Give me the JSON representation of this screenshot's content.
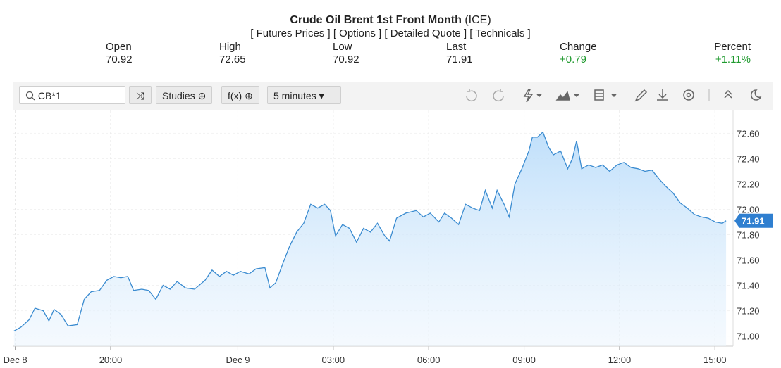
{
  "header": {
    "title": "Crude Oil Brent 1st Front Month",
    "exchange": "(ICE)",
    "links": [
      "[ Futures Prices ]",
      "[ Options ]",
      "[ Detailed Quote ]",
      "[ Technicals ]"
    ],
    "stats": [
      {
        "label": "Open",
        "value": "70.92"
      },
      {
        "label": "High",
        "value": "72.65"
      },
      {
        "label": "Low",
        "value": "70.92"
      },
      {
        "label": "Last",
        "value": "71.91"
      },
      {
        "label": "Change",
        "value": "+0.79"
      },
      {
        "label": "Percent",
        "value": "+1.11%"
      }
    ]
  },
  "toolbar": {
    "symbol": "CB*1",
    "studies": "Studies",
    "fx": "f(x)",
    "interval": "5 minutes"
  },
  "chart_data": {
    "type": "area",
    "color": "#3a8bd0",
    "grid": true,
    "last_price": 71.91,
    "last_label": "71.91",
    "x": [
      16.96,
      17.18,
      17.44,
      17.62,
      17.88,
      18.06,
      18.22,
      18.44,
      18.66,
      18.95,
      19.17,
      19.39,
      19.65,
      19.88,
      20.1,
      20.32,
      20.54,
      20.72,
      20.98,
      21.2,
      21.42,
      21.65,
      21.87,
      22.09,
      22.35,
      22.64,
      22.97,
      23.19,
      23.42,
      23.64,
      23.86,
      24.08,
      24.35,
      24.57,
      24.85,
      25.01,
      25.19,
      25.41,
      25.63,
      25.85,
      26.07,
      26.29,
      26.51,
      26.73,
      26.91,
      27.07,
      27.29,
      27.51,
      27.73,
      27.95,
      28.17,
      28.39,
      28.62,
      28.77,
      28.99,
      29.28,
      29.61,
      29.83,
      30.05,
      30.32,
      30.5,
      30.72,
      30.94,
      31.16,
      31.38,
      31.6,
      31.78,
      32.0,
      32.15,
      32.37,
      32.53,
      32.71,
      32.93,
      33.15,
      33.26,
      33.42,
      33.59,
      33.77,
      33.92,
      34.15,
      34.37,
      34.52,
      34.65,
      34.81,
      35.03,
      35.25,
      35.47,
      35.69,
      35.92,
      36.14,
      36.36,
      36.58,
      36.8,
      37.02,
      37.24,
      37.46,
      37.68,
      37.91,
      38.13,
      38.35,
      38.57,
      38.79,
      39.01,
      39.23,
      39.35
    ],
    "values": [
      71.04,
      71.07,
      71.13,
      71.22,
      71.2,
      71.12,
      71.21,
      71.17,
      71.08,
      71.09,
      71.29,
      71.35,
      71.36,
      71.44,
      71.47,
      71.46,
      71.47,
      71.36,
      71.37,
      71.36,
      71.29,
      71.4,
      71.37,
      71.43,
      71.38,
      71.37,
      71.44,
      71.52,
      71.47,
      71.51,
      71.48,
      71.51,
      71.49,
      71.53,
      71.54,
      71.38,
      71.42,
      71.57,
      71.71,
      71.82,
      71.89,
      72.04,
      72.01,
      72.04,
      71.99,
      71.79,
      71.88,
      71.85,
      71.74,
      71.85,
      71.82,
      71.89,
      71.79,
      71.75,
      71.93,
      71.97,
      71.99,
      71.94,
      71.97,
      71.9,
      71.97,
      71.93,
      71.88,
      72.04,
      72.01,
      71.99,
      72.15,
      72.01,
      72.15,
      72.04,
      71.94,
      72.2,
      72.32,
      72.46,
      72.57,
      72.57,
      72.61,
      72.49,
      72.43,
      72.46,
      72.32,
      72.4,
      72.54,
      72.32,
      72.35,
      72.33,
      72.35,
      72.3,
      72.35,
      72.37,
      72.33,
      72.32,
      72.3,
      72.31,
      72.24,
      72.18,
      72.13,
      72.05,
      72.01,
      71.96,
      71.94,
      71.93,
      71.9,
      71.89,
      71.91
    ],
    "xlim": [
      16.92,
      39.57
    ],
    "ylim": [
      70.92,
      72.78
    ],
    "xticks": [
      {
        "value": 17,
        "label": "Dec 8"
      },
      {
        "value": 20,
        "label": "20:00"
      },
      {
        "value": 24,
        "label": "Dec 9"
      },
      {
        "value": 27,
        "label": "03:00"
      },
      {
        "value": 30,
        "label": "06:00"
      },
      {
        "value": 33,
        "label": "09:00"
      },
      {
        "value": 36,
        "label": "12:00"
      },
      {
        "value": 39,
        "label": "15:00"
      }
    ],
    "yticks": [
      {
        "value": 71,
        "label": "71.00"
      },
      {
        "value": 71.2,
        "label": "71.20"
      },
      {
        "value": 71.4,
        "label": "71.40"
      },
      {
        "value": 71.6,
        "label": "71.60"
      },
      {
        "value": 71.8,
        "label": "71.80"
      },
      {
        "value": 72,
        "label": "72.00"
      },
      {
        "value": 72.2,
        "label": "72.20"
      },
      {
        "value": 72.4,
        "label": "72.40"
      },
      {
        "value": 72.6,
        "label": "72.60"
      }
    ]
  }
}
